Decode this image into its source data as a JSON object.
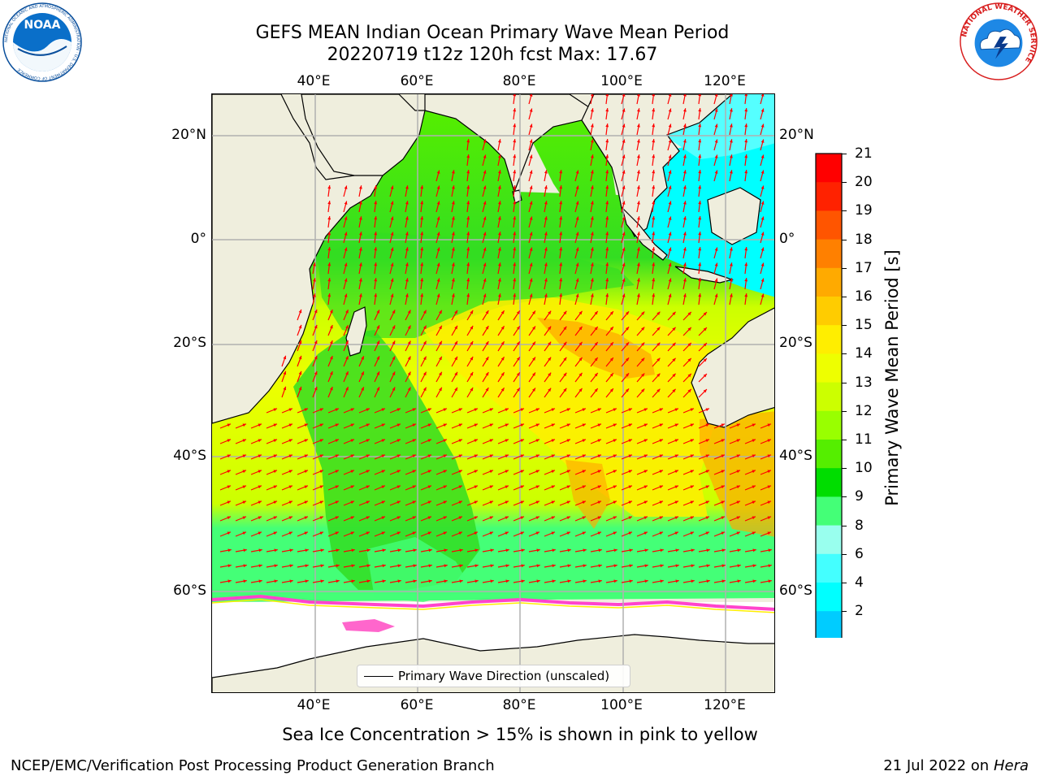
{
  "header": {
    "title_line1": "GEFS MEAN Indian Ocean Primary Wave Mean Period",
    "title_line2": "20220719 t12z 120h fcst   Max: 17.67"
  },
  "logos": {
    "left": {
      "text": "NOAA",
      "ring_text": "NATIONAL OCEANIC AND ATMOSPHERIC ADMINISTRATION · U.S. DEPARTMENT OF COMMERCE",
      "color": "#0a4f9c"
    },
    "right": {
      "ring_text": "NATIONAL WEATHER SERVICE",
      "color": "#d81e1e"
    }
  },
  "map": {
    "lon_ticks": [
      "40°E",
      "60°E",
      "80°E",
      "100°E",
      "120°E"
    ],
    "lat_ticks_left": [
      "20°N",
      "0°",
      "20°S",
      "40°S",
      "60°S"
    ],
    "lat_ticks_right": [
      "20°N",
      "0°",
      "20°S",
      "40°S",
      "60°S"
    ],
    "land_color": "#efeedd",
    "ice_color": "#ffffff",
    "arrow_color": "#ff0000",
    "legend_label": "Primary Wave Direction (unscaled)"
  },
  "colorbar": {
    "label": "Primary Wave Mean Period [s]",
    "ticks": [
      "21",
      "20",
      "19",
      "18",
      "17",
      "16",
      "15",
      "14",
      "13",
      "12",
      "11",
      "10",
      "9",
      "8",
      "6",
      "4",
      "2"
    ],
    "colors": [
      "#ff0000",
      "#ff2200",
      "#ff5500",
      "#ff8000",
      "#ffaa00",
      "#ffcc00",
      "#ffee00",
      "#eeff00",
      "#ccff00",
      "#99ff00",
      "#55ee00",
      "#00dd00",
      "#44ff77",
      "#99ffee",
      "#44ffff",
      "#00ffff",
      "#00ccff",
      "#0066ff"
    ],
    "extend_color": "#0000ff"
  },
  "caption": "Sea Ice Concentration > 15% is shown in pink to yellow",
  "footer": {
    "left": "NCEP/EMC/Verification Post Processing Product Generation Branch",
    "date": "21 Jul 2022",
    "on": "on",
    "machine": "Hera"
  }
}
